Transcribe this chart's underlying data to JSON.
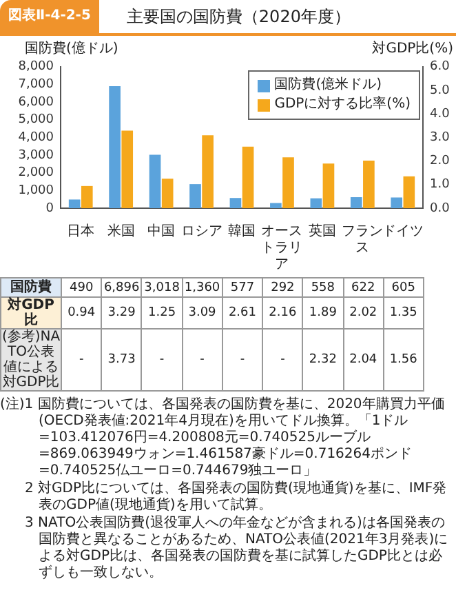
{
  "chart_data": {
    "type": "bar",
    "title": "主要国の国防費（2020年度）",
    "subtitle": "図表Ⅱ-4-2-5",
    "ylabel": "国防費(億ドル)",
    "y2label": "対GDP比(%)",
    "categories": [
      "日本",
      "米国",
      "中国",
      "ロシア",
      "韓国",
      "オーストラリア",
      "英国",
      "フランス",
      "ドイツ"
    ],
    "series": [
      {
        "name": "国防費(億米ドル)",
        "color": "#5ba3dc",
        "values": [
          490,
          6896,
          3018,
          1360,
          577,
          292,
          558,
          622,
          605
        ],
        "value_labels": [
          "490",
          "6,896",
          "3,018",
          "1,360",
          "577",
          "292",
          "558",
          "622",
          "605"
        ]
      },
      {
        "name": "GDPに対する比率(%)",
        "color": "#f5a81c",
        "axis": "y2",
        "values": [
          0.94,
          3.29,
          1.25,
          3.09,
          2.61,
          2.16,
          1.89,
          2.02,
          1.35
        ],
        "value_labels": [
          "0.94",
          "3.29",
          "1.25",
          "3.09",
          "2.61",
          "2.16",
          "1.89",
          "2.02",
          "1.35"
        ]
      }
    ],
    "ylim": [
      0,
      8000
    ],
    "yticks": [
      0,
      {
        "value": 1000,
        "label": "1,000"
      },
      {
        "value": 2000,
        "label": "2,000"
      },
      {
        "value": 3000,
        "label": "3,000"
      },
      {
        "value": 4000,
        "label": "4,000"
      },
      {
        "value": 5000,
        "label": "5,000"
      },
      {
        "value": 6000,
        "label": "6,000"
      },
      {
        "value": 7000,
        "label": "7,000"
      },
      {
        "value": 8000,
        "label": "8,000"
      }
    ],
    "y2lim": [
      0,
      6
    ],
    "y2ticks": [
      {
        "value": 0,
        "label": "0.0"
      },
      {
        "value": 1,
        "label": "1.0"
      },
      {
        "value": 2,
        "label": "2.0"
      },
      {
        "value": 3,
        "label": "3.0"
      },
      {
        "value": 4,
        "label": "4.0"
      },
      {
        "value": 5,
        "label": "5.0"
      },
      {
        "value": 6,
        "label": "6.0"
      }
    ],
    "legend": "top right",
    "grid": false,
    "annotations": [
      "国防費",
      "対GDP比",
      "(参考)NATO公表値による対GDP比",
      "-",
      "3.73",
      "-",
      "-",
      "-",
      "-",
      "2.32",
      "2.04",
      "1.56",
      "(注)1 国防費については、各国発表の国防費を基に、2020年購買力平価(OECD発表値:2021年4月現在)を用いてドル換算。「1ドル=103.412076円=4.200808元=0.740525ルーブル=869.063949ウォン=1.461587豪ドル=0.716264ポンド=0.740525仏ユーロ=0.744679独ユーロ」",
      "2 対GDP比については、各国発表の国防費(現地通貨)を基に、IMF発表のGDP値(現地通貨)を用いて試算。",
      "3 NATO公表国防費(退役軍人への年金などが含まれる)は各国発表の国防費と異なることがあるため、NATO公表値(2021年3月発表)による対GDP比は、各国発表の国防費を基に試算したGDP比とは必ずしも一致しない。"
    ]
  }
}
